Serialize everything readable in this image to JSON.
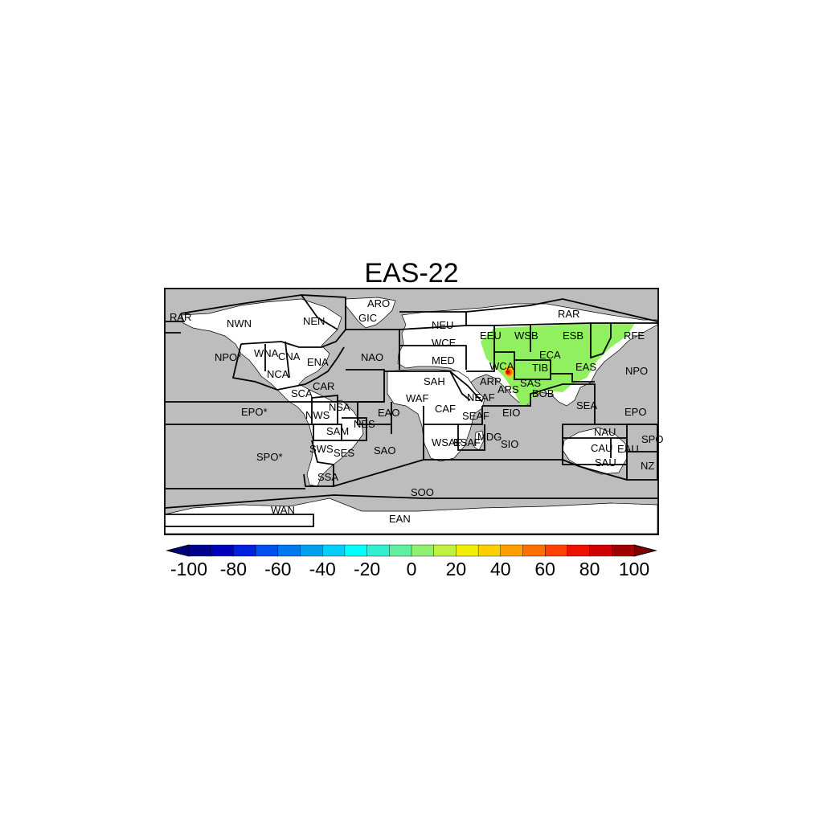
{
  "title": "EAS-22",
  "colorbar": {
    "ticks": [
      "-100",
      "-80",
      "-60",
      "-40",
      "-20",
      "0",
      "20",
      "40",
      "60",
      "80",
      "100"
    ],
    "colors": [
      "#00008f",
      "#0000bf",
      "#0020df",
      "#0050ef",
      "#0078f0",
      "#00a0f0",
      "#00d0f8",
      "#00ffff",
      "#30f0d0",
      "#60f0a0",
      "#90f070",
      "#c0f040",
      "#f0f000",
      "#ffd000",
      "#ffa000",
      "#ff7000",
      "#ff4000",
      "#f01000",
      "#d00000",
      "#a00000"
    ],
    "under_color": "#000080",
    "over_color": "#800000"
  },
  "field": {
    "highlight_color": "#90f060",
    "hotspot_colors": [
      "#ffd000",
      "#ff7000",
      "#d00000"
    ]
  },
  "regions": [
    "RAR",
    "ARO",
    "GIC",
    "NWN",
    "NEN",
    "NPO*",
    "WNA",
    "CNA",
    "ENA",
    "NAO",
    "NCA",
    "CAR",
    "SCA",
    "NEU",
    "WCE",
    "MED",
    "EEU",
    "WSB",
    "ESB",
    "RFE",
    "ECA",
    "TIB",
    "EAS",
    "NPO",
    "WCA",
    "SAH",
    "ARP",
    "ARS",
    "SAS",
    "BOB",
    "WAF",
    "NEAF",
    "CAF",
    "SEAF",
    "EIO",
    "EAO",
    "NSA",
    "NWS",
    "NES",
    "SAM",
    "SWS",
    "SES",
    "SAO",
    "WSAF",
    "ESAF",
    "MDG",
    "SIO",
    "SEA",
    "EPO",
    "EPO*",
    "SPO*",
    "NAU",
    "CAU",
    "EAU",
    "SAU",
    "SPO",
    "NZ",
    "SSA",
    "SOO",
    "WAN",
    "EAN",
    "RAR"
  ]
}
